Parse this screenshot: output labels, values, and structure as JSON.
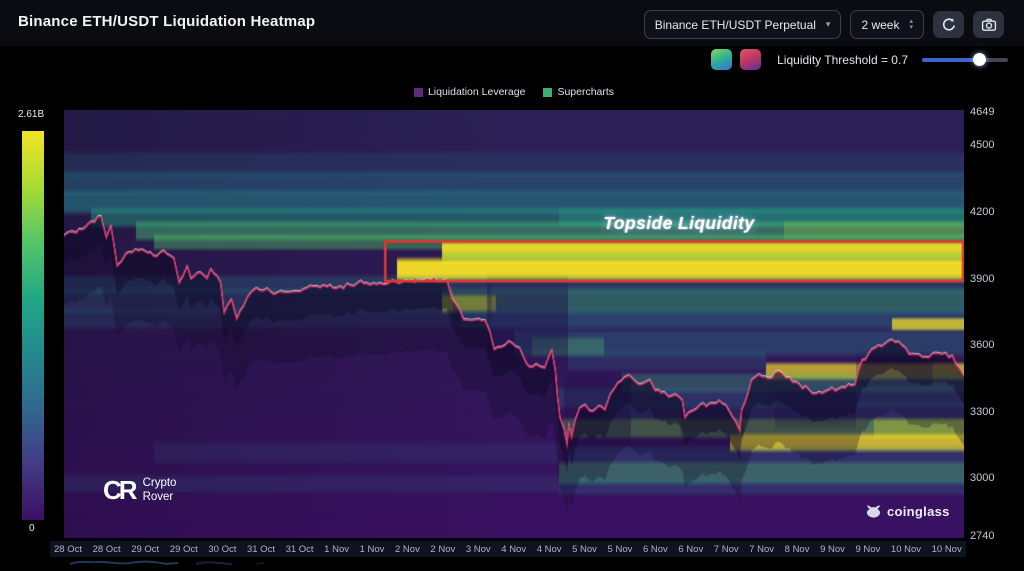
{
  "header": {
    "title": "Binance ETH/USDT Liquidation Heatmap",
    "symbol_select": {
      "value": "Binance ETH/USDT Perpetual"
    },
    "timeframe": {
      "value": "2 week"
    }
  },
  "threshold": {
    "label": "Liquidity Threshold = 0.7",
    "value": 0.7,
    "slider_position": 0.67
  },
  "legend": {
    "items": [
      {
        "label": "Liquidation Leverage",
        "color": "#5c2d7a"
      },
      {
        "label": "Supercharts",
        "color": "#3fae6e"
      }
    ]
  },
  "colorbar": {
    "max_label": "2.61B",
    "min_label": "0"
  },
  "watermarks": {
    "crypto_rover": {
      "mark": "CR",
      "line1": "Crypto",
      "line2": "Rover"
    },
    "coinglass": "coinglass"
  },
  "chart_data": {
    "type": "heatmap",
    "title": "Binance ETH/USDT Liquidation Heatmap",
    "subtitle": "Liquidation leverage heatmap with price overlay",
    "colorbar": {
      "min": 0,
      "max_label": "2.61B"
    },
    "y_axis": {
      "side": "right",
      "ticks": [
        4649,
        4500,
        4200,
        3900,
        3600,
        3300,
        3000,
        2740
      ],
      "min": 2740,
      "max": 4649,
      "render_max": 4660,
      "render_min": 2730
    },
    "x_axis": {
      "labels": [
        "28 Oct",
        "28 Oct",
        "29 Oct",
        "29 Oct",
        "30 Oct",
        "31 Oct",
        "31 Oct",
        "1 Nov",
        "1 Nov",
        "2 Nov",
        "2 Nov",
        "3 Nov",
        "4 Nov",
        "4 Nov",
        "5 Nov",
        "5 Nov",
        "6 Nov",
        "6 Nov",
        "7 Nov",
        "7 Nov",
        "8 Nov",
        "9 Nov",
        "9 Nov",
        "10 Nov",
        "10 Nov"
      ]
    },
    "annotation": {
      "text": "Topside Liquidity",
      "box_price_top": 4068,
      "box_price_bottom": 3888,
      "box_x_start": 0.357,
      "box_x_end": 0.999,
      "box_color": "#e0382c"
    },
    "palette": {
      "base_top": "#2a2155",
      "base_mid": "#2e1a55",
      "base_bottom": "#3a1163"
    },
    "price_line": {
      "color": "#e23064",
      "anchors": [
        [
          0,
          4090
        ],
        [
          0.02,
          4122
        ],
        [
          0.041,
          4181
        ],
        [
          0.047,
          4082
        ],
        [
          0.052,
          4136
        ],
        [
          0.059,
          3956
        ],
        [
          0.064,
          3978
        ],
        [
          0.069,
          4014
        ],
        [
          0.086,
          4032
        ],
        [
          0.103,
          4001
        ],
        [
          0.111,
          4023
        ],
        [
          0.122,
          3992
        ],
        [
          0.128,
          3879
        ],
        [
          0.137,
          3956
        ],
        [
          0.141,
          3897
        ],
        [
          0.148,
          3924
        ],
        [
          0.159,
          3897
        ],
        [
          0.163,
          3942
        ],
        [
          0.174,
          3879
        ],
        [
          0.178,
          3744
        ],
        [
          0.186,
          3807
        ],
        [
          0.192,
          3717
        ],
        [
          0.2,
          3775
        ],
        [
          0.208,
          3834
        ],
        [
          0.214,
          3856
        ],
        [
          0.237,
          3834
        ],
        [
          0.259,
          3843
        ],
        [
          0.281,
          3866
        ],
        [
          0.303,
          3856
        ],
        [
          0.326,
          3879
        ],
        [
          0.376,
          3882
        ],
        [
          0.425,
          3897
        ],
        [
          0.431,
          3812
        ],
        [
          0.444,
          3717
        ],
        [
          0.453,
          3708
        ],
        [
          0.468,
          3712
        ],
        [
          0.473,
          3663
        ],
        [
          0.478,
          3577
        ],
        [
          0.494,
          3618
        ],
        [
          0.506,
          3586
        ],
        [
          0.511,
          3541
        ],
        [
          0.514,
          3510
        ],
        [
          0.528,
          3505
        ],
        [
          0.534,
          3496
        ],
        [
          0.542,
          3577
        ],
        [
          0.546,
          3482
        ],
        [
          0.548,
          3375
        ],
        [
          0.551,
          3271
        ],
        [
          0.556,
          3212
        ],
        [
          0.559,
          3150
        ],
        [
          0.561,
          3240
        ],
        [
          0.564,
          3181
        ],
        [
          0.568,
          3258
        ],
        [
          0.573,
          3316
        ],
        [
          0.579,
          3330
        ],
        [
          0.584,
          3303
        ],
        [
          0.594,
          3325
        ],
        [
          0.601,
          3307
        ],
        [
          0.607,
          3375
        ],
        [
          0.612,
          3406
        ],
        [
          0.622,
          3451
        ],
        [
          0.628,
          3465
        ],
        [
          0.634,
          3438
        ],
        [
          0.642,
          3420
        ],
        [
          0.651,
          3438
        ],
        [
          0.657,
          3393
        ],
        [
          0.667,
          3384
        ],
        [
          0.672,
          3361
        ],
        [
          0.679,
          3375
        ],
        [
          0.687,
          3348
        ],
        [
          0.69,
          3271
        ],
        [
          0.698,
          3303
        ],
        [
          0.707,
          3330
        ],
        [
          0.717,
          3330
        ],
        [
          0.728,
          3348
        ],
        [
          0.739,
          3303
        ],
        [
          0.746,
          3258
        ],
        [
          0.751,
          3212
        ],
        [
          0.753,
          3303
        ],
        [
          0.764,
          3438
        ],
        [
          0.772,
          3465
        ],
        [
          0.783,
          3451
        ],
        [
          0.794,
          3482
        ],
        [
          0.806,
          3451
        ],
        [
          0.817,
          3420
        ],
        [
          0.828,
          3393
        ],
        [
          0.839,
          3384
        ],
        [
          0.85,
          3393
        ],
        [
          0.864,
          3406
        ],
        [
          0.879,
          3420
        ],
        [
          0.887,
          3528
        ],
        [
          0.894,
          3555
        ],
        [
          0.901,
          3586
        ],
        [
          0.912,
          3600
        ],
        [
          0.92,
          3623
        ],
        [
          0.931,
          3600
        ],
        [
          0.939,
          3555
        ],
        [
          0.95,
          3555
        ],
        [
          0.961,
          3541
        ],
        [
          0.968,
          3564
        ],
        [
          0.976,
          3555
        ],
        [
          0.987,
          3550
        ],
        [
          0.994,
          3500
        ],
        [
          1,
          3460
        ]
      ]
    },
    "liquidity_bands": [
      [
        4460,
        4370,
        0,
        1,
        "#277f8e",
        0.18
      ],
      [
        4370,
        4290,
        0,
        1,
        "#277f8e",
        0.38
      ],
      [
        4285,
        4205,
        0,
        1,
        "#23898e",
        0.52
      ],
      [
        4205,
        4145,
        0.03,
        1,
        "#22a884",
        0.42
      ],
      [
        4205,
        4145,
        0.55,
        1,
        "#22a884",
        0.28
      ],
      [
        4145,
        4085,
        0.08,
        1,
        "#44bf70",
        0.48
      ],
      [
        4145,
        4085,
        0.8,
        1,
        "#a5db36",
        0.25
      ],
      [
        4085,
        4045,
        0.1,
        1,
        "#54c568",
        0.42
      ],
      [
        4050,
        4000,
        0.42,
        1,
        "#fde725",
        0.88
      ],
      [
        4000,
        3978,
        0.42,
        1,
        "#7ad151",
        0.5
      ],
      [
        3978,
        3902,
        0.37,
        1,
        "#fde725",
        0.92
      ],
      [
        3900,
        3845,
        0,
        1,
        "#277f8e",
        0.28
      ],
      [
        3845,
        3755,
        0,
        0.42,
        "#277f8e",
        0.22
      ],
      [
        3845,
        3755,
        0.42,
        1,
        "#35b779",
        0.42
      ],
      [
        3812,
        3762,
        0.42,
        0.48,
        "#dde318",
        0.6
      ],
      [
        3750,
        3688,
        0,
        0.44,
        "#277f8e",
        0.18
      ],
      [
        3750,
        3688,
        0.44,
        1,
        "#277f8e",
        0.38
      ],
      [
        3705,
        3682,
        0.92,
        1,
        "#fde725",
        0.7
      ],
      [
        3660,
        3560,
        0.5,
        1,
        "#23898e",
        0.32
      ],
      [
        3620,
        3565,
        0.52,
        0.6,
        "#54c568",
        0.3
      ],
      [
        3560,
        3500,
        0.56,
        0.78,
        "#277f8e",
        0.22
      ],
      [
        3505,
        3458,
        0.78,
        1,
        "#fde725",
        0.65
      ],
      [
        3460,
        3400,
        0.62,
        1,
        "#35b779",
        0.32
      ],
      [
        3395,
        3330,
        0.55,
        1,
        "#277f8e",
        0.26
      ],
      [
        3330,
        3270,
        0.6,
        1,
        "#277f8e",
        0.2
      ],
      [
        3255,
        3195,
        0.555,
        1,
        "#7ad151",
        0.5
      ],
      [
        3255,
        3195,
        0.9,
        1,
        "#dde318",
        0.3
      ],
      [
        3185,
        3135,
        0.74,
        1,
        "#fde725",
        0.75
      ],
      [
        3130,
        3070,
        0.56,
        1,
        "#277f8e",
        0.26
      ],
      [
        3150,
        3080,
        0.1,
        0.55,
        "#277f8e",
        0.12
      ],
      [
        3060,
        2985,
        0.55,
        1,
        "#44bf70",
        0.45
      ],
      [
        2985,
        2940,
        0.55,
        1,
        "#277f8e",
        0.25
      ],
      [
        3000,
        2950,
        0,
        0.55,
        "#277f8e",
        0.14
      ]
    ],
    "dark_zones": [
      [
        3900,
        3520,
        0.47,
        0.56,
        "#1b1046",
        0.45
      ],
      [
        3460,
        3150,
        0.556,
        0.63,
        "#1b1046",
        0.4
      ],
      [
        3340,
        3190,
        0.685,
        0.755,
        "#1b1046",
        0.32
      ],
      [
        3400,
        3230,
        0.79,
        0.88,
        "#1b1046",
        0.3
      ],
      [
        3870,
        3700,
        0.432,
        0.475,
        "#1b1046",
        0.3
      ],
      [
        3560,
        3430,
        0.88,
        0.965,
        "#1b1046",
        0.3
      ]
    ]
  }
}
